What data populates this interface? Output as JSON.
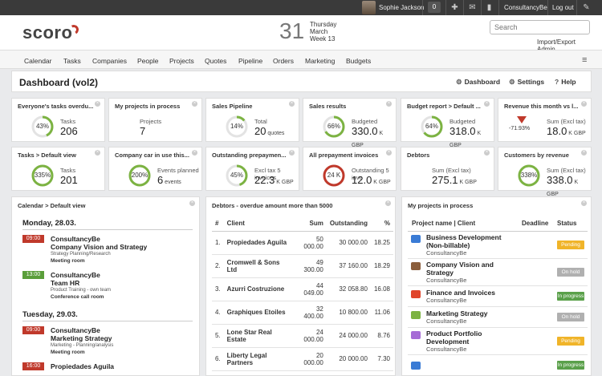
{
  "topbar": {
    "user_name": "Sophie Jackson",
    "count": "0",
    "company": "ConsultancyBe",
    "logout": "Log out"
  },
  "header": {
    "logo": "scoro",
    "day_number": "31",
    "weekday": "Thursday",
    "month": "March",
    "week": "Week 13",
    "search_placeholder": "Search",
    "import_export": "Import/Export",
    "admin": "Admin"
  },
  "nav": [
    "Calendar",
    "Tasks",
    "Companies",
    "People",
    "Projects",
    "Quotes",
    "Pipeline",
    "Orders",
    "Marketing",
    "Budgets"
  ],
  "dashboard": {
    "title": "Dashboard (vol2)",
    "dashboard_label": "Dashboard",
    "settings_label": "Settings",
    "help_label": "Help"
  },
  "widgets_row1": [
    {
      "title": "Everyone's tasks overdu...",
      "pct": "43%",
      "pct_value": 43,
      "color": "#7cb342",
      "label": "Tasks",
      "value": "206",
      "unit": ""
    },
    {
      "title": "My projects in process",
      "pct": "",
      "pct_value": 0,
      "color": "",
      "label": "Projects",
      "value": "7",
      "unit": ""
    },
    {
      "title": "Sales Pipeline",
      "pct": "14%",
      "pct_value": 14,
      "color": "#7cb342",
      "label": "Total",
      "value": "20",
      "unit": "quotes"
    },
    {
      "title": "Sales results",
      "pct": "66%",
      "pct_value": 66,
      "color": "#7cb342",
      "label": "Budgeted",
      "value": "330.0",
      "unit": "K GBP"
    },
    {
      "title": "Budget report > Default ...",
      "pct": "64%",
      "pct_value": 64,
      "color": "#7cb342",
      "label": "Budgeted",
      "value": "318.0",
      "unit": "K GBP"
    },
    {
      "title": "Revenue this month vs l...",
      "pct": "-71.93%",
      "pct_value": 0,
      "color": "#c0392b",
      "label": "Sum (Excl tax)",
      "value": "18.0",
      "unit": "K GBP"
    }
  ],
  "widgets_row2": [
    {
      "title": "Tasks > Default view",
      "pct": "335%",
      "pct_value": 100,
      "color": "#7cb342",
      "label": "Tasks",
      "value": "201",
      "unit": ""
    },
    {
      "title": "Company car in use this...",
      "pct": "200%",
      "pct_value": 100,
      "color": "#7cb342",
      "label": "Events planned",
      "value": "6",
      "unit": "events"
    },
    {
      "title": "Outstanding prepaymen...",
      "pct": "45%",
      "pct_value": 45,
      "color": "#7cb342",
      "label": "Excl tax 5 invoices",
      "value": "22.3",
      "unit": "K GBP"
    },
    {
      "title": "All prepayment invoices",
      "pct": "24 K",
      "pct_value": 100,
      "color": "#c0392b",
      "label": "Outstanding 5 invo",
      "value": "12.0",
      "unit": "K GBP"
    },
    {
      "title": "Debtors",
      "pct": "",
      "pct_value": 0,
      "color": "",
      "label": "Sum (Excl tax)",
      "value": "275.1",
      "unit": "K GBP"
    },
    {
      "title": "Customers by revenue",
      "pct": "338%",
      "pct_value": 100,
      "color": "#7cb342",
      "label": "Sum (Excl tax)",
      "value": "338.0",
      "unit": "K GBP"
    }
  ],
  "calendar": {
    "title": "Calendar > Default view",
    "days": [
      {
        "label": "Monday, 28.03.",
        "events": [
          {
            "time": "09:00",
            "color": "#c0392b",
            "company": "ConsultancyBe",
            "title": "Company Vision and Strategy",
            "desc": "Strategy Planning/Research",
            "location": "Meeting room"
          },
          {
            "time": "13:00",
            "color": "#5a9e3a",
            "company": "ConsultancyBe",
            "title": "Team HR",
            "desc": "Product Training - own team",
            "location": "Conference call room"
          }
        ]
      },
      {
        "label": "Tuesday, 29.03.",
        "events": [
          {
            "time": "09:00",
            "color": "#c0392b",
            "company": "ConsultancyBe",
            "title": "Marketing Strategy",
            "desc": "Marketing - Planning/analysis",
            "location": "Meeting room"
          },
          {
            "time": "16:00",
            "color": "#c0392b",
            "company": "Propiedades Aguila",
            "title": "",
            "desc": "",
            "location": ""
          }
        ]
      }
    ]
  },
  "debtors": {
    "title": "Debtors - overdue amount more than 5000",
    "columns": [
      "#",
      "Client",
      "Sum",
      "Outstanding",
      "%"
    ],
    "rows": [
      {
        "n": "1.",
        "client": "Propiedades Aguila",
        "sum": "50 000.00",
        "out": "30 000.00",
        "pct": "18.25"
      },
      {
        "n": "2.",
        "client": "Cromwell & Sons Ltd",
        "sum": "49 300.00",
        "out": "37 160.00",
        "pct": "18.29"
      },
      {
        "n": "3.",
        "client": "Azurri Costruzione",
        "sum": "44 049.00",
        "out": "32 058.80",
        "pct": "16.08"
      },
      {
        "n": "4.",
        "client": "Graphiques Etoiles",
        "sum": "32 400.00",
        "out": "10 800.00",
        "pct": "11.06"
      },
      {
        "n": "5.",
        "client": "Lone Star Real Estate",
        "sum": "24 000.00",
        "out": "24 000.00",
        "pct": "8.76"
      },
      {
        "n": "6.",
        "client": "Liberty Legal Partners",
        "sum": "20 000.00",
        "out": "20 000.00",
        "pct": "7.30"
      }
    ]
  },
  "projects": {
    "title": "My projects in process",
    "columns": [
      "Project name | Client",
      "Deadline",
      "Status"
    ],
    "rows": [
      {
        "name": "Business Development (Non-billable)",
        "client": "ConsultancyBe",
        "color": "#3a7bd5",
        "status": "Pending",
        "status_color": "#f0b429"
      },
      {
        "name": "Company Vision and Strategy",
        "client": "ConsultancyBe",
        "color": "#8b5e3c",
        "status": "On hold",
        "status_color": "#b0b0b0"
      },
      {
        "name": "Finance and Invoices",
        "client": "ConsultancyBe",
        "color": "#e0452b",
        "status": "In progress",
        "status_color": "#5aa04a"
      },
      {
        "name": "Marketing Strategy",
        "client": "ConsultancyBe",
        "color": "#7cb342",
        "status": "On hold",
        "status_color": "#b0b0b0"
      },
      {
        "name": "Product Portfolio Development",
        "client": "ConsultancyBe",
        "color": "#a66bd6",
        "status": "Pending",
        "status_color": "#f0b429"
      },
      {
        "name": "",
        "client": "",
        "color": "#3a7bd5",
        "status": "In progress",
        "status_color": "#5aa04a"
      }
    ]
  }
}
